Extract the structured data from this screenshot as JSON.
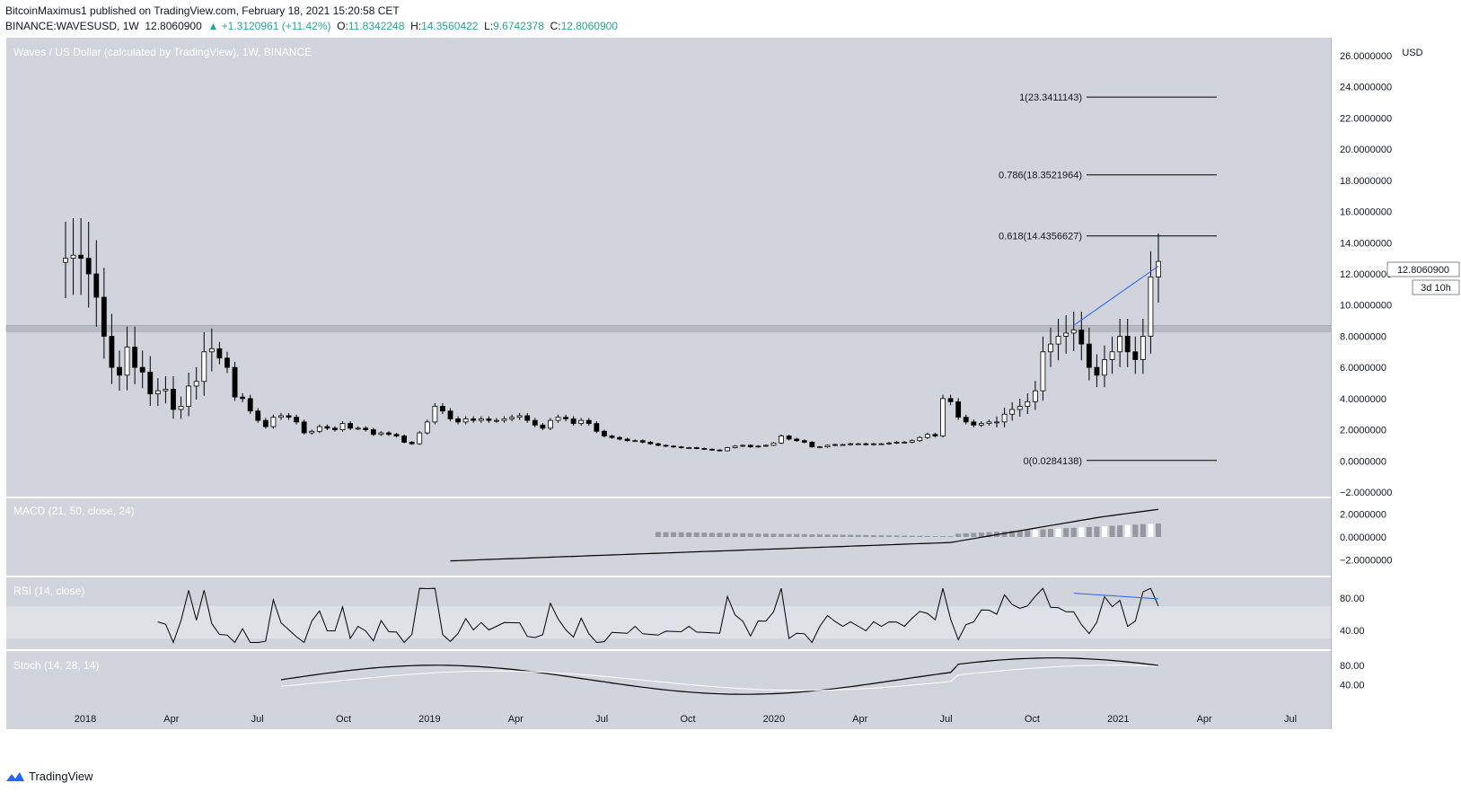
{
  "header": {
    "author": "BitcoinMaximus1",
    "published": "published on TradingView.com, February 18, 2021 15:20:58 CET",
    "symbol": "BINANCE:WAVESUSD, 1W",
    "last": "12.8060900",
    "change": "▲ +1.3120961 (+11.42%)",
    "o_label": "O:",
    "o_value": "11.8342248",
    "h_label": "H:",
    "h_value": "14.3560422",
    "l_label": "L:",
    "l_value": "9.6742378",
    "c_label": "C:",
    "c_value": "12.8060900"
  },
  "footer": {
    "brand": "TradingView",
    "logo_icon": "tradingview-logo-icon"
  },
  "colors": {
    "background": "#d1d4dc",
    "candle_up": "#ffffff",
    "candle_down": "#000000",
    "trend_line": "#2962ff",
    "support_band": "#b2b5be"
  },
  "chart_data": [
    {
      "type": "candlestick",
      "title": "Waves / US Dollar (calculated by TradingView), 1W, BINANCE",
      "ylabel": "USD",
      "ylim": [
        -2.0,
        26.0
      ],
      "yticks": [
        "−2.0000000",
        "0.0000000",
        "2.0000000",
        "4.0000000",
        "6.0000000",
        "8.0000000",
        "10.0000000",
        "12.0000000",
        "14.0000000",
        "16.0000000",
        "18.0000000",
        "20.0000000",
        "22.0000000",
        "24.0000000",
        "26.0000000"
      ],
      "xticks": [
        "2018",
        "Apr",
        "Jul",
        "Oct",
        "2019",
        "Apr",
        "Jul",
        "Oct",
        "2020",
        "Apr",
        "Jul",
        "Oct",
        "2021",
        "Apr",
        "Jul"
      ],
      "last_price_label": "12.8060900",
      "countdown_label": "3d 10h",
      "support_zone": [
        8.3,
        8.7
      ],
      "fib_levels": [
        {
          "label": "1(23.3411143)",
          "value": 23.3411143
        },
        {
          "label": "0.786(18.3521964)",
          "value": 18.3521964
        },
        {
          "label": "0.618(14.4356627)",
          "value": 14.4356627
        },
        {
          "label": "0(0.0284138)",
          "value": 0.0284138
        }
      ],
      "weekly_close_approx": [
        13.0,
        13.2,
        13.0,
        12.0,
        10.5,
        8.0,
        6.0,
        5.5,
        7.3,
        6.0,
        5.7,
        4.3,
        4.5,
        4.6,
        3.3,
        3.5,
        4.8,
        5.1,
        7.0,
        7.2,
        6.6,
        6.0,
        4.1,
        4.0,
        3.2,
        2.6,
        2.2,
        2.8,
        2.9,
        2.8,
        2.5,
        1.8,
        1.9,
        2.2,
        2.1,
        2.0,
        2.4,
        2.1,
        2.1,
        2.0,
        1.7,
        1.8,
        1.7,
        1.6,
        1.2,
        1.1,
        1.8,
        2.5,
        3.5,
        3.2,
        2.7,
        2.5,
        2.7,
        2.6,
        2.7,
        2.6,
        2.6,
        2.7,
        2.8,
        2.9,
        2.6,
        2.3,
        2.1,
        2.6,
        2.8,
        2.7,
        2.4,
        2.6,
        2.4,
        1.9,
        1.6,
        1.5,
        1.4,
        1.3,
        1.3,
        1.2,
        1.1,
        1.0,
        0.95,
        0.9,
        0.85,
        0.85,
        0.8,
        0.75,
        0.7,
        0.65,
        0.85,
        0.95,
        1.0,
        0.9,
        0.95,
        1.0,
        1.15,
        1.6,
        1.4,
        1.3,
        1.2,
        0.9,
        0.9,
        1.0,
        1.05,
        1.05,
        1.1,
        1.1,
        1.05,
        1.1,
        1.1,
        1.15,
        1.2,
        1.2,
        1.3,
        1.5,
        1.7,
        1.6,
        4.0,
        3.8,
        2.8,
        2.5,
        2.3,
        2.4,
        2.5,
        2.5,
        3.0,
        3.3,
        3.5,
        3.8,
        4.5,
        7.0,
        7.5,
        8.0,
        8.2,
        8.4,
        7.5,
        6.0,
        5.5,
        6.5,
        7.0,
        8.0,
        7.0,
        6.5,
        8.0,
        11.8,
        12.8
      ],
      "trend_line": {
        "from_value": 8.7,
        "to_value": 12.5
      }
    },
    {
      "type": "line",
      "title": "MACD (21, 50, close, 24)",
      "ylim": [
        -3.0,
        3.0
      ],
      "yticks": [
        "−2.0000000",
        "0.0000000",
        "2.0000000"
      ]
    },
    {
      "type": "line",
      "title": "RSI (14, close)",
      "ylim": [
        20,
        100
      ],
      "yticks": [
        "40.00",
        "80.00"
      ],
      "band": [
        30,
        70
      ]
    },
    {
      "type": "line",
      "title": "Stoch (14, 28, 14)",
      "ylim": [
        0,
        100
      ],
      "yticks": [
        "40.00",
        "80.00"
      ]
    }
  ]
}
